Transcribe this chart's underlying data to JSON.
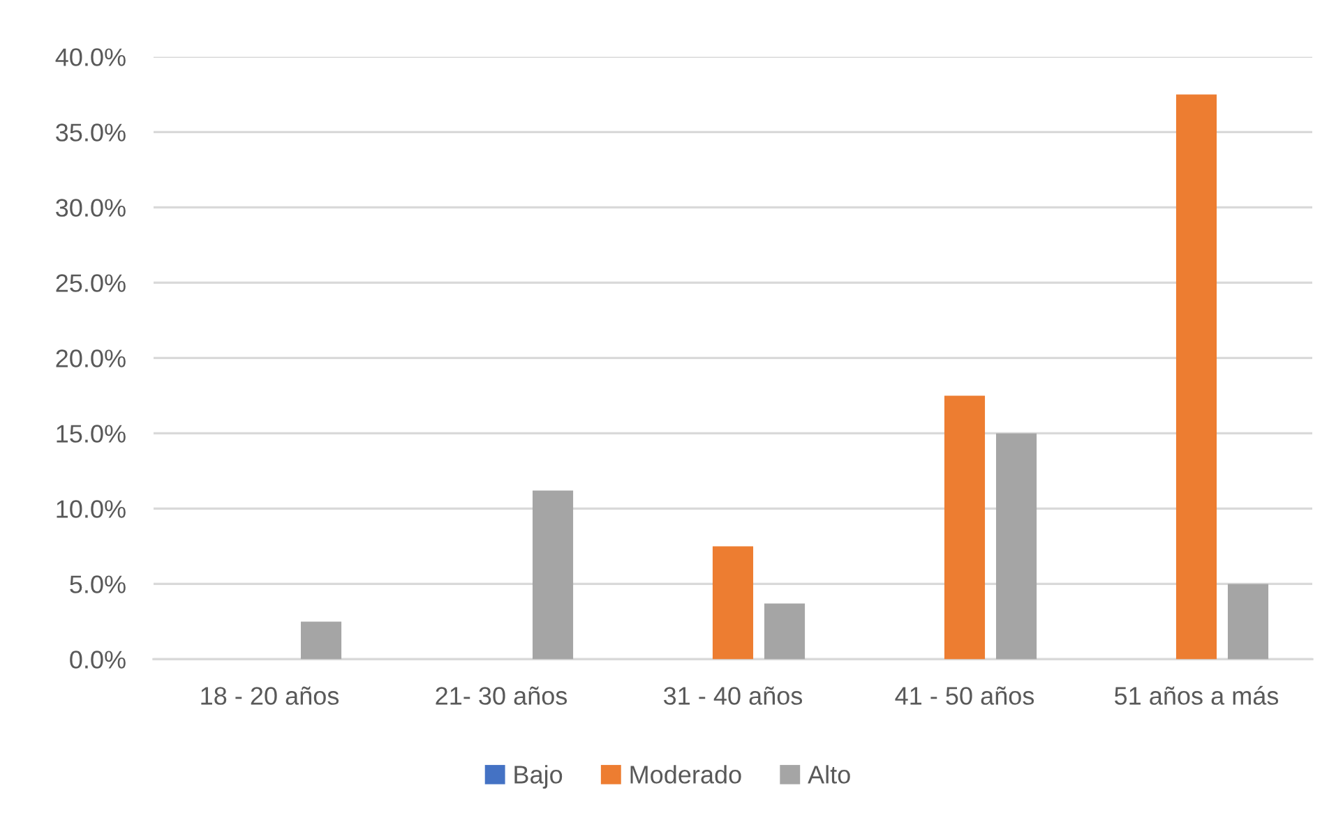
{
  "chart_data": {
    "type": "bar",
    "categories": [
      "18 - 20 años",
      "21- 30 años",
      "31 - 40 años",
      "41 - 50 años",
      "51 años a más"
    ],
    "series": [
      {
        "name": "Bajo",
        "color": "#4472c4",
        "values": [
          0,
          0,
          0,
          0,
          0
        ]
      },
      {
        "name": "Moderado",
        "color": "#ed7d31",
        "values": [
          0,
          0,
          7.5,
          17.5,
          37.5
        ]
      },
      {
        "name": "Alto",
        "color": "#a5a5a5",
        "values": [
          2.5,
          11.2,
          3.7,
          15.0,
          5.0
        ]
      }
    ],
    "ylim": [
      0,
      40
    ],
    "yticks": [
      {
        "value": 0,
        "label": "0.0%"
      },
      {
        "value": 5,
        "label": "5.0%"
      },
      {
        "value": 10,
        "label": "10.0%"
      },
      {
        "value": 15,
        "label": "15.0%"
      },
      {
        "value": 20,
        "label": "20.0%"
      },
      {
        "value": 25,
        "label": "25.0%"
      },
      {
        "value": 30,
        "label": "30.0%"
      },
      {
        "value": 35,
        "label": "35.0%"
      },
      {
        "value": 40,
        "label": "40.0%"
      }
    ],
    "grid": "y",
    "legend": "bottom"
  }
}
